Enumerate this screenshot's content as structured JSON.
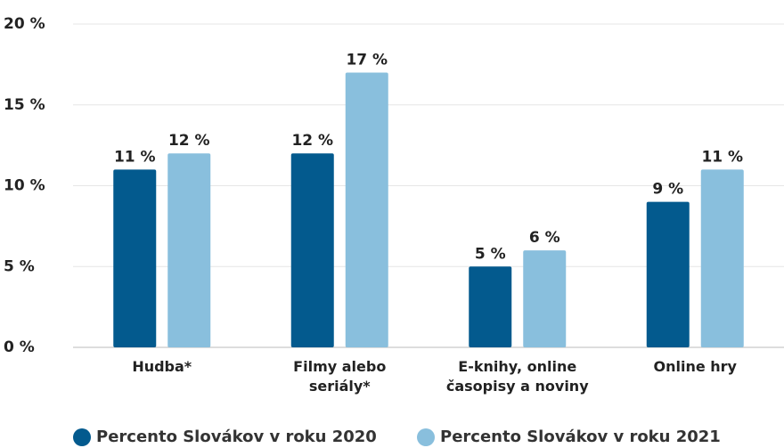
{
  "chart_data": {
    "type": "bar",
    "categories": [
      "Hudba*",
      "Filmy alebo\nseriály*",
      "E-knihy, online\nčasopisy a noviny",
      "Online hry"
    ],
    "series": [
      {
        "name": "Percento Slovákov v roku 2020",
        "color": "#035a8e",
        "values": [
          11,
          12,
          5,
          9
        ],
        "value_labels": [
          "11 %",
          "12 %",
          "5 %",
          "9 %"
        ]
      },
      {
        "name": "Percento Slovákov v roku 2021",
        "color": "#89bfdd",
        "values": [
          12,
          17,
          6,
          11
        ],
        "value_labels": [
          "12 %",
          "17 %",
          "6 %",
          "11 %"
        ]
      }
    ],
    "ylim": [
      0,
      20
    ],
    "yticks": [
      {
        "value": 0,
        "label": "0 %"
      },
      {
        "value": 5,
        "label": "5 %"
      },
      {
        "value": 10,
        "label": "10 %"
      },
      {
        "value": 15,
        "label": "15 %"
      },
      {
        "value": 20,
        "label": "20 %"
      }
    ],
    "grid": true
  }
}
